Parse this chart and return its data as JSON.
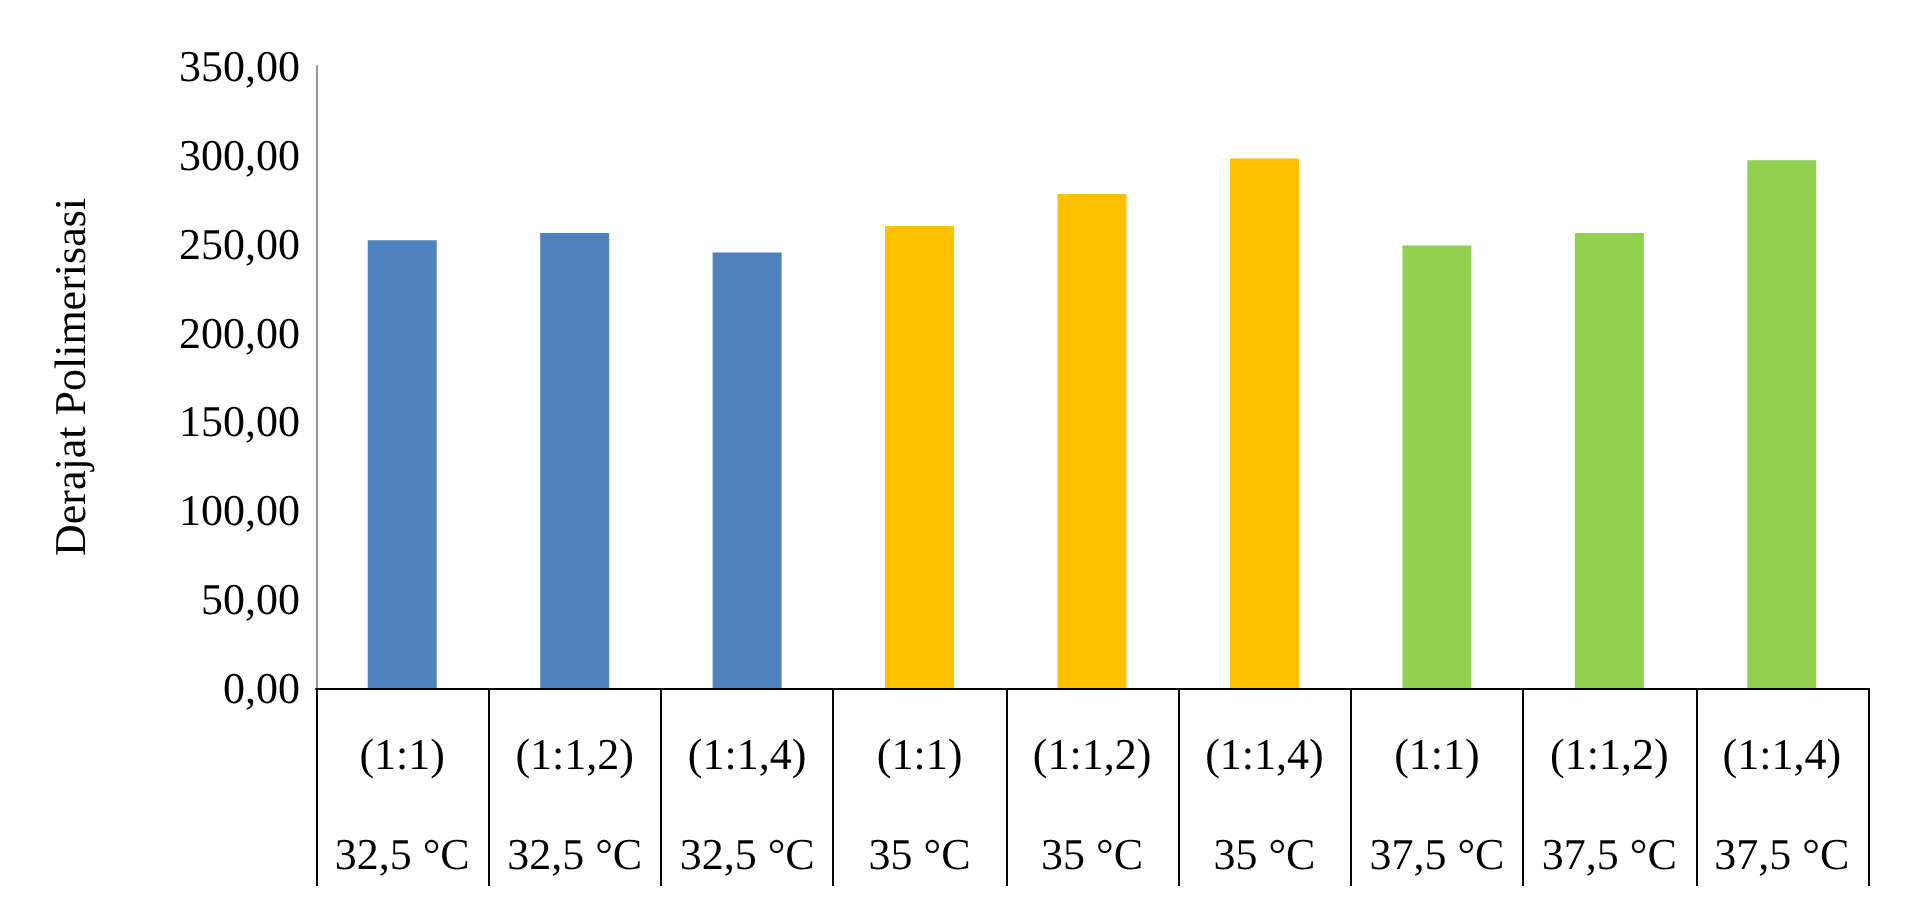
{
  "chart_data": {
    "type": "bar",
    "ylabel": "Derajat Polimerisasi",
    "categories": [
      "(1:1)\n32,5 °C",
      "(1:1,2)\n32,5 °C",
      "(1:1,4)\n32,5 °C",
      "(1:1)\n35 °C",
      "(1:1,2)\n35 °C",
      "(1:1,4)\n35 °C",
      "(1:1)\n37,5 °C",
      "(1:1,2)\n37,5 °C",
      "(1:1,4)\n37,5 °C"
    ],
    "values": [
      252,
      256,
      245,
      260,
      278,
      298,
      249,
      256,
      297
    ],
    "colors": [
      "#4f81bd",
      "#4f81bd",
      "#4f81bd",
      "#ffc000",
      "#ffc000",
      "#ffc000",
      "#92d050",
      "#92d050",
      "#92d050"
    ],
    "ylim": [
      0,
      350
    ],
    "yticks": [
      {
        "value": 0,
        "label": "0,00"
      },
      {
        "value": 50,
        "label": "50,00"
      },
      {
        "value": 100,
        "label": "100,00"
      },
      {
        "value": 150,
        "label": "150,00"
      },
      {
        "value": 200,
        "label": "200,00"
      },
      {
        "value": 250,
        "label": "250,00"
      },
      {
        "value": 300,
        "label": "300,00"
      },
      {
        "value": 350,
        "label": "350,00"
      }
    ],
    "grid": false
  }
}
